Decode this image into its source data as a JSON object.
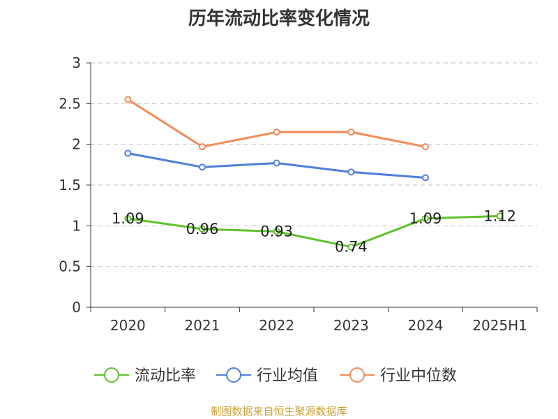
{
  "title": "历年流动比率变化情况",
  "source": "制图数据来自恒生聚源数据库",
  "source_color": "#c9a03a",
  "chart_data": {
    "type": "line",
    "title": "历年流动比率变化情况",
    "categories": [
      "2020",
      "2021",
      "2022",
      "2023",
      "2024",
      "2025H1"
    ],
    "ylim": [
      0,
      3
    ],
    "yticks": [
      "0",
      "0.5",
      "1",
      "1.5",
      "2",
      "2.5",
      "3"
    ],
    "grid": true,
    "legend_position": "bottom",
    "series": [
      {
        "name": "流动比率",
        "color": "#5fc22b",
        "values": [
          1.09,
          0.96,
          0.93,
          0.74,
          1.09,
          1.12
        ],
        "labels": [
          "1.09",
          "0.96",
          "0.93",
          "0.74",
          "1.09",
          "1.12"
        ]
      },
      {
        "name": "行业均值",
        "color": "#4f7fdc",
        "values": [
          1.89,
          1.72,
          1.77,
          1.66,
          1.59,
          null
        ]
      },
      {
        "name": "行业中位数",
        "color": "#f48b57",
        "values": [
          2.55,
          1.97,
          2.15,
          2.15,
          1.97,
          null
        ]
      }
    ]
  }
}
